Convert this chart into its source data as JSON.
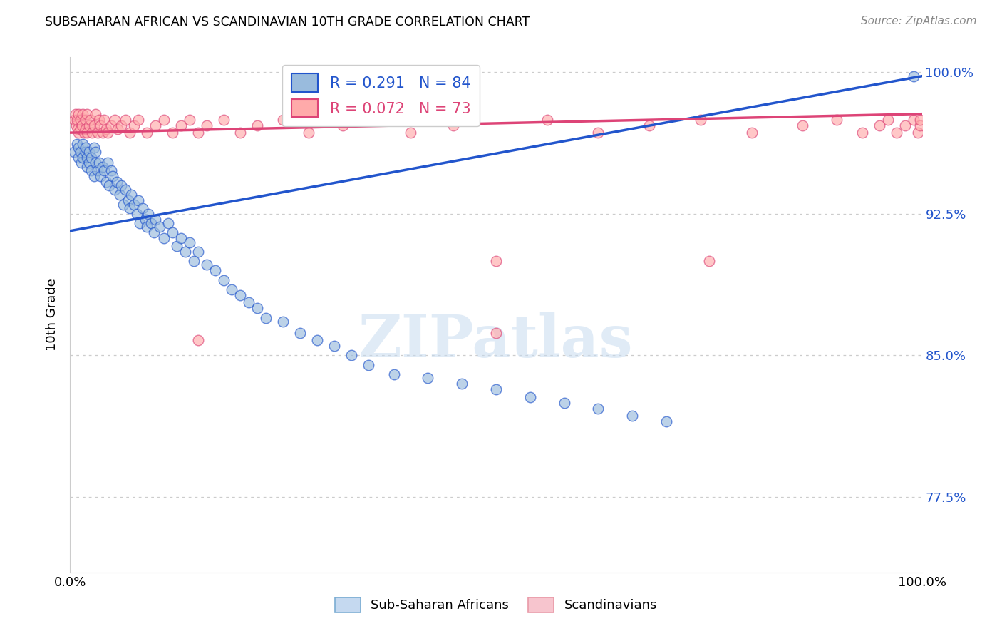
{
  "title": "SUBSAHARAN AFRICAN VS SCANDINAVIAN 10TH GRADE CORRELATION CHART",
  "source": "Source: ZipAtlas.com",
  "ylabel": "10th Grade",
  "xlim": [
    0.0,
    1.0
  ],
  "ylim": [
    0.735,
    1.008
  ],
  "yticks": [
    0.775,
    0.85,
    0.925,
    1.0
  ],
  "ytick_labels": [
    "77.5%",
    "85.0%",
    "92.5%",
    "100.0%"
  ],
  "blue_color": "#99BBDD",
  "pink_color": "#FFAAAA",
  "blue_line_color": "#2255CC",
  "pink_line_color": "#DD4477",
  "watermark_text": "ZIPatlas",
  "legend_label_blue": "Sub-Saharan Africans",
  "legend_label_pink": "Scandinavians",
  "legend_blue_R": "R = 0.291",
  "legend_blue_N": "N = 84",
  "legend_pink_R": "R = 0.072",
  "legend_pink_N": "N = 73",
  "blue_line_y_start": 0.916,
  "blue_line_y_end": 0.998,
  "pink_line_y_start": 0.968,
  "pink_line_y_end": 0.978,
  "blue_x": [
    0.005,
    0.008,
    0.01,
    0.01,
    0.012,
    0.013,
    0.015,
    0.015,
    0.018,
    0.018,
    0.02,
    0.02,
    0.022,
    0.022,
    0.025,
    0.025,
    0.028,
    0.028,
    0.03,
    0.03,
    0.032,
    0.034,
    0.036,
    0.038,
    0.04,
    0.042,
    0.044,
    0.046,
    0.048,
    0.05,
    0.052,
    0.055,
    0.058,
    0.06,
    0.062,
    0.065,
    0.068,
    0.07,
    0.072,
    0.075,
    0.078,
    0.08,
    0.082,
    0.085,
    0.088,
    0.09,
    0.092,
    0.095,
    0.098,
    0.1,
    0.105,
    0.11,
    0.115,
    0.12,
    0.125,
    0.13,
    0.135,
    0.14,
    0.145,
    0.15,
    0.16,
    0.17,
    0.18,
    0.19,
    0.2,
    0.21,
    0.22,
    0.23,
    0.25,
    0.27,
    0.29,
    0.31,
    0.33,
    0.35,
    0.38,
    0.42,
    0.46,
    0.5,
    0.54,
    0.58,
    0.62,
    0.66,
    0.7,
    0.99
  ],
  "blue_y": [
    0.958,
    0.962,
    0.96,
    0.955,
    0.958,
    0.952,
    0.962,
    0.955,
    0.958,
    0.96,
    0.955,
    0.95,
    0.958,
    0.952,
    0.955,
    0.948,
    0.96,
    0.945,
    0.952,
    0.958,
    0.948,
    0.952,
    0.945,
    0.95,
    0.948,
    0.942,
    0.952,
    0.94,
    0.948,
    0.945,
    0.938,
    0.942,
    0.935,
    0.94,
    0.93,
    0.938,
    0.932,
    0.928,
    0.935,
    0.93,
    0.925,
    0.932,
    0.92,
    0.928,
    0.922,
    0.918,
    0.925,
    0.92,
    0.915,
    0.922,
    0.918,
    0.912,
    0.92,
    0.915,
    0.908,
    0.912,
    0.905,
    0.91,
    0.9,
    0.905,
    0.898,
    0.895,
    0.89,
    0.885,
    0.882,
    0.878,
    0.875,
    0.87,
    0.868,
    0.862,
    0.858,
    0.855,
    0.85,
    0.845,
    0.84,
    0.838,
    0.835,
    0.832,
    0.828,
    0.825,
    0.822,
    0.818,
    0.815,
    0.998
  ],
  "pink_x": [
    0.005,
    0.006,
    0.007,
    0.008,
    0.009,
    0.01,
    0.01,
    0.012,
    0.012,
    0.014,
    0.015,
    0.016,
    0.018,
    0.018,
    0.02,
    0.02,
    0.022,
    0.024,
    0.026,
    0.028,
    0.03,
    0.032,
    0.034,
    0.036,
    0.038,
    0.04,
    0.042,
    0.044,
    0.048,
    0.052,
    0.056,
    0.06,
    0.065,
    0.07,
    0.075,
    0.08,
    0.09,
    0.1,
    0.11,
    0.12,
    0.13,
    0.14,
    0.15,
    0.16,
    0.18,
    0.2,
    0.22,
    0.25,
    0.28,
    0.32,
    0.36,
    0.4,
    0.45,
    0.5,
    0.56,
    0.62,
    0.68,
    0.74,
    0.8,
    0.86,
    0.9,
    0.93,
    0.95,
    0.96,
    0.97,
    0.98,
    0.99,
    0.995,
    0.998,
    0.998,
    0.15,
    0.5,
    0.75
  ],
  "pink_y": [
    0.975,
    0.978,
    0.972,
    0.975,
    0.97,
    0.978,
    0.968,
    0.975,
    0.97,
    0.972,
    0.978,
    0.968,
    0.975,
    0.97,
    0.978,
    0.968,
    0.972,
    0.975,
    0.968,
    0.972,
    0.978,
    0.968,
    0.975,
    0.972,
    0.968,
    0.975,
    0.97,
    0.968,
    0.972,
    0.975,
    0.97,
    0.972,
    0.975,
    0.968,
    0.972,
    0.975,
    0.968,
    0.972,
    0.975,
    0.968,
    0.972,
    0.975,
    0.968,
    0.972,
    0.975,
    0.968,
    0.972,
    0.975,
    0.968,
    0.972,
    0.975,
    0.968,
    0.972,
    0.9,
    0.975,
    0.968,
    0.972,
    0.975,
    0.968,
    0.972,
    0.975,
    0.968,
    0.972,
    0.975,
    0.968,
    0.972,
    0.975,
    0.968,
    0.972,
    0.975,
    0.858,
    0.862,
    0.9
  ]
}
